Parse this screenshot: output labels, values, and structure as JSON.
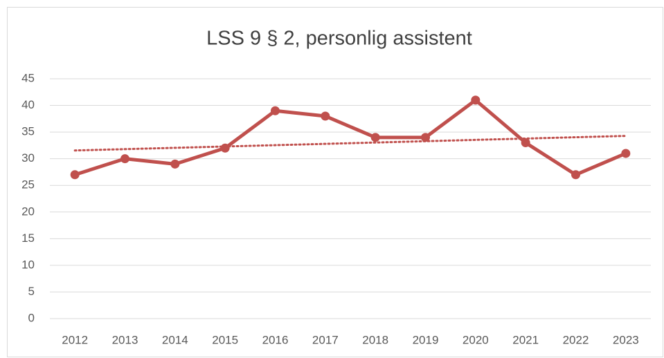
{
  "chart_data": {
    "type": "line",
    "title": "LSS 9 § 2, personlig assistent",
    "categories": [
      "2012",
      "2013",
      "2014",
      "2015",
      "2016",
      "2017",
      "2018",
      "2019",
      "2020",
      "2021",
      "2022",
      "2023"
    ],
    "values": [
      27,
      30,
      29,
      32,
      39,
      38,
      34,
      34,
      41,
      33,
      27,
      31
    ],
    "color": "#c0504d",
    "ylim": [
      0,
      45
    ],
    "yticks": [
      0,
      5,
      10,
      15,
      20,
      25,
      30,
      35,
      40,
      45
    ],
    "grid": true,
    "trendline": "linear"
  }
}
